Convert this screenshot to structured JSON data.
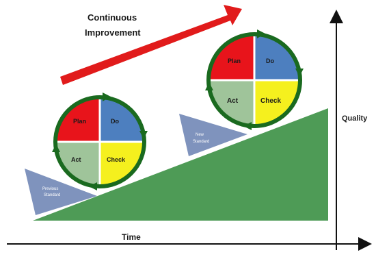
{
  "arrow_label": {
    "line1": "Continuous",
    "line2": "Improvement"
  },
  "axes": {
    "x_label": "Time",
    "y_label": "Quality"
  },
  "cycle_upper": {
    "plan": "Plan",
    "do": "Do",
    "check": "Check",
    "act": "Act",
    "colors": {
      "plan": "#e8141b",
      "do": "#4d7fbf",
      "check": "#f5f01e",
      "act": "#9fc49a",
      "ring": "#1a6a1f"
    }
  },
  "cycle_lower": {
    "plan": "Plan",
    "do": "Do",
    "check": "Check",
    "act": "Act",
    "colors": {
      "plan": "#e8141b",
      "do": "#4d7fbf",
      "check": "#f5f01e",
      "act": "#9fc49a",
      "ring": "#1a6a1f"
    }
  },
  "wedge_lower": {
    "line1": "Previous",
    "line2": "Standard"
  },
  "wedge_upper": {
    "line1": "New",
    "line2": "Standard"
  },
  "colors": {
    "ramp": "#4e9b56",
    "arrow": "#e11b1b",
    "wedge": "#7f93bd",
    "axis": "#111111"
  }
}
